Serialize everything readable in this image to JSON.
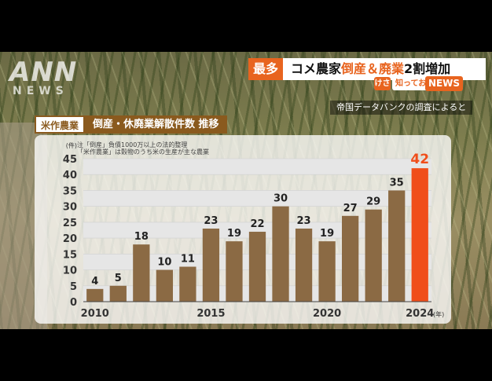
{
  "broadcast": {
    "logo": "ANN",
    "logo_sub": "NEWS",
    "headline_tag": "最多",
    "headline_pre": "コメ農家",
    "headline_accent": "倒産＆廃業",
    "headline_post": "2割増加",
    "kesa_badge": "けさ",
    "shitte_badge": "知っておきたい!",
    "news_badge": "NEWS",
    "source": "帝国データバンクの調査によると"
  },
  "chart_header": {
    "tag": "米作農業",
    "title": "倒産・休廃業解散件数 推移"
  },
  "notes": {
    "line1": "注「倒産」負債1000万以上の法的整理",
    "line2": "「米作農業」は穀物のうち米の生産が主な農業"
  },
  "chart_data": {
    "type": "bar",
    "title": "倒産・休廃業解散件数 推移",
    "y_unit": "(件)",
    "x_unit": "(年)",
    "categories": [
      "2010",
      "2011",
      "2012",
      "2013",
      "2014",
      "2015",
      "2016",
      "2017",
      "2018",
      "2019",
      "2020",
      "2021",
      "2022",
      "2023",
      "2024"
    ],
    "x_tick_labels": [
      "2010",
      "2015",
      "2020",
      "2024"
    ],
    "values": [
      4,
      5,
      18,
      10,
      11,
      23,
      19,
      22,
      30,
      23,
      19,
      27,
      29,
      35,
      42
    ],
    "ylim": [
      0,
      45
    ],
    "y_ticks": [
      0,
      5,
      10,
      15,
      20,
      25,
      30,
      35,
      40,
      45
    ],
    "bar_color": "#8b6a44",
    "highlight_color": "#f04e1a",
    "highlight_index": 14,
    "grid": true
  }
}
